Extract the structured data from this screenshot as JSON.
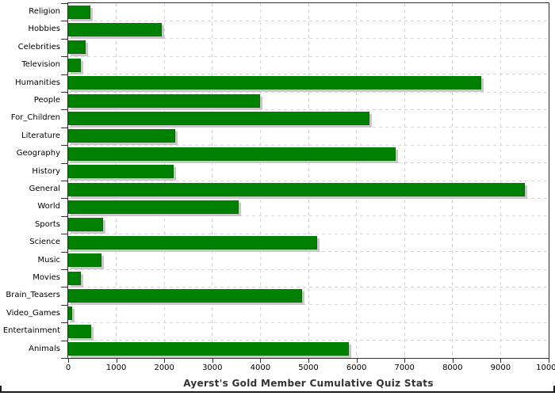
{
  "chart_data": {
    "type": "bar",
    "orientation": "horizontal",
    "title": "Ayerst's Gold Member Cumulative Quiz Stats",
    "xlabel": "",
    "ylabel": "",
    "categories": [
      "Religion",
      "Hobbies",
      "Celebrities",
      "Television",
      "Humanities",
      "People",
      "For_Children",
      "Literature",
      "Geography",
      "History",
      "General",
      "World",
      "Sports",
      "Science",
      "Music",
      "Movies",
      "Brain_Teasers",
      "Video_Games",
      "Entertainment",
      "Animals"
    ],
    "values": [
      460,
      1950,
      370,
      270,
      8590,
      4000,
      6270,
      2230,
      6820,
      2200,
      9510,
      3550,
      720,
      5180,
      700,
      270,
      4860,
      85,
      480,
      5840
    ],
    "x_ticks": [
      "0",
      "1000",
      "2000",
      "3000",
      "4000",
      "5000",
      "6000",
      "7000",
      "8000",
      "9000",
      "10000"
    ],
    "xlim": [
      0,
      10000
    ],
    "grid": "dashed-both-axes",
    "legend": "none",
    "colors": {
      "bar_fill": "#008000",
      "bar_edge": "#036d03",
      "bar_shadow": "#c8c8c8",
      "gridline": "#d6d6d6",
      "plot_border": "#2f2f2f",
      "axis_text": "#000000",
      "title_text": "#333333",
      "background": "#ffffff"
    }
  }
}
